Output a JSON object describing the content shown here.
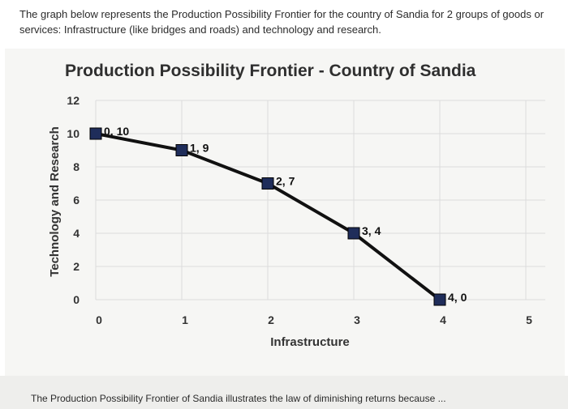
{
  "intro_text": "The graph below represents the Production Possibility Frontier for the country of Sandia for 2 groups of goods or services: Infrastructure (like bridges and roads) and technology and research.",
  "footer_text": "The Production Possibility Frontier of Sandia illustrates the law of diminishing returns because ...",
  "chart_data": {
    "type": "line",
    "title": "Production Possibility Frontier - Country of Sandia",
    "xlabel": "Infrastructure",
    "ylabel": "Technology and Research",
    "xlim": [
      0,
      5
    ],
    "ylim": [
      0,
      12
    ],
    "x_ticks": [
      0,
      1,
      2,
      3,
      4,
      5
    ],
    "y_ticks": [
      0,
      2,
      4,
      6,
      8,
      10,
      12
    ],
    "grid": true,
    "series": [
      {
        "x": [
          0,
          1,
          2,
          3,
          4
        ],
        "y": [
          10,
          9,
          7,
          4,
          0
        ],
        "labels": [
          "0, 10",
          "1, 9",
          "2, 7",
          "3, 4",
          "4, 0"
        ]
      }
    ],
    "line_color": "#111111",
    "marker_color": "#1f2d5a"
  }
}
